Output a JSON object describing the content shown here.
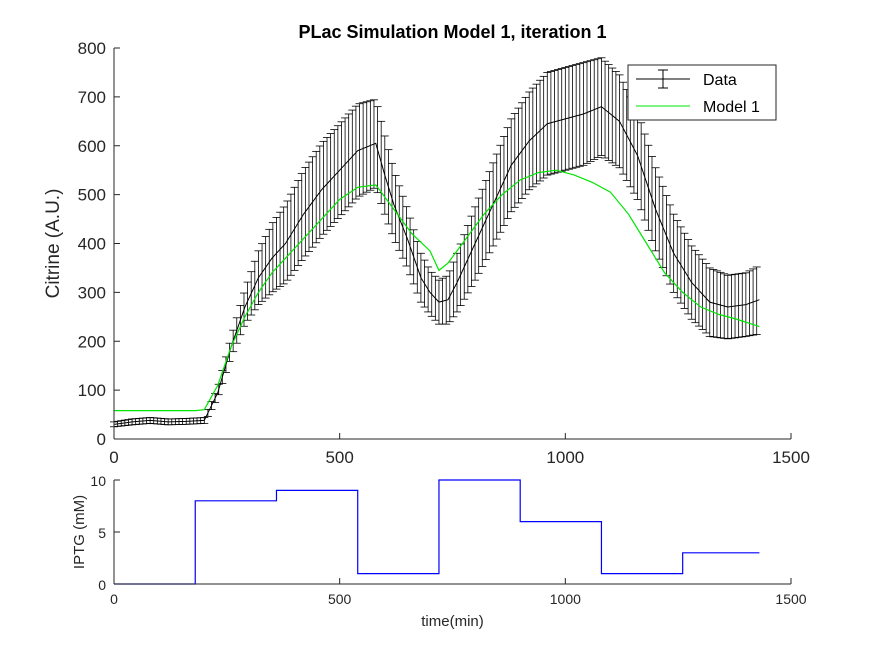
{
  "chart_data": [
    {
      "type": "line",
      "title": "PLac Simulation Model 1, iteration 1",
      "xlabel": "",
      "ylabel": "Citrine (A.U.)",
      "xlim": [
        0,
        1500
      ],
      "ylim": [
        0,
        800
      ],
      "xticks": [
        "0",
        "500",
        "1000",
        "1500"
      ],
      "yticks": [
        "0",
        "100",
        "200",
        "300",
        "400",
        "500",
        "600",
        "700",
        "800"
      ],
      "legend": {
        "placement": "top-right",
        "entries": [
          "Data",
          "Model 1"
        ]
      },
      "grid": false,
      "series": [
        {
          "name": "Data",
          "style": "errorbar",
          "color": "#000000",
          "x": [
            0,
            40,
            80,
            120,
            160,
            200,
            230,
            260,
            290,
            320,
            350,
            380,
            420,
            460,
            500,
            540,
            580,
            600,
            620,
            650,
            680,
            700,
            720,
            740,
            760,
            800,
            840,
            880,
            920,
            960,
            1000,
            1040,
            1080,
            1120,
            1160,
            1200,
            1240,
            1280,
            1320,
            1360,
            1400,
            1430
          ],
          "y": [
            30,
            35,
            38,
            35,
            36,
            38,
            95,
            190,
            270,
            330,
            370,
            400,
            460,
            510,
            550,
            590,
            605,
            540,
            480,
            410,
            330,
            300,
            280,
            285,
            320,
            400,
            480,
            560,
            610,
            645,
            655,
            665,
            680,
            650,
            580,
            470,
            380,
            320,
            280,
            270,
            275,
            285
          ],
          "err": [
            5,
            6,
            6,
            6,
            6,
            6,
            10,
            20,
            35,
            55,
            70,
            80,
            90,
            95,
            95,
            95,
            90,
            80,
            70,
            60,
            50,
            45,
            45,
            50,
            60,
            75,
            85,
            95,
            100,
            105,
            105,
            105,
            100,
            95,
            90,
            85,
            80,
            75,
            70,
            65,
            65,
            70
          ]
        },
        {
          "name": "Model 1",
          "style": "line",
          "color": "#00e600",
          "x": [
            0,
            100,
            180,
            200,
            230,
            260,
            290,
            320,
            350,
            380,
            420,
            460,
            500,
            540,
            580,
            620,
            660,
            700,
            720,
            740,
            780,
            820,
            860,
            900,
            940,
            980,
            1020,
            1060,
            1100,
            1140,
            1180,
            1220,
            1260,
            1300,
            1340,
            1380,
            1430
          ],
          "y": [
            58,
            58,
            58,
            60,
            110,
            190,
            250,
            300,
            340,
            370,
            410,
            450,
            490,
            515,
            520,
            470,
            420,
            385,
            345,
            360,
            410,
            460,
            500,
            530,
            545,
            550,
            540,
            525,
            505,
            460,
            400,
            340,
            300,
            270,
            255,
            245,
            230
          ]
        }
      ]
    },
    {
      "type": "line",
      "title": "",
      "xlabel": "time(min)",
      "ylabel": "IPTG (mM)",
      "xlim": [
        0,
        1500
      ],
      "ylim": [
        0,
        10
      ],
      "xticks": [
        "0",
        "500",
        "1000",
        "1500"
      ],
      "yticks": [
        "0",
        "5",
        "10"
      ],
      "grid": false,
      "series": [
        {
          "name": "",
          "style": "step",
          "color": "#0000ff",
          "x": [
            0,
            180,
            180,
            360,
            360,
            540,
            540,
            720,
            720,
            900,
            900,
            1080,
            1080,
            1260,
            1260,
            1430
          ],
          "y": [
            0,
            0,
            8,
            8,
            9,
            9,
            1,
            1,
            10,
            10,
            6,
            6,
            1,
            1,
            3,
            3
          ]
        }
      ]
    }
  ]
}
